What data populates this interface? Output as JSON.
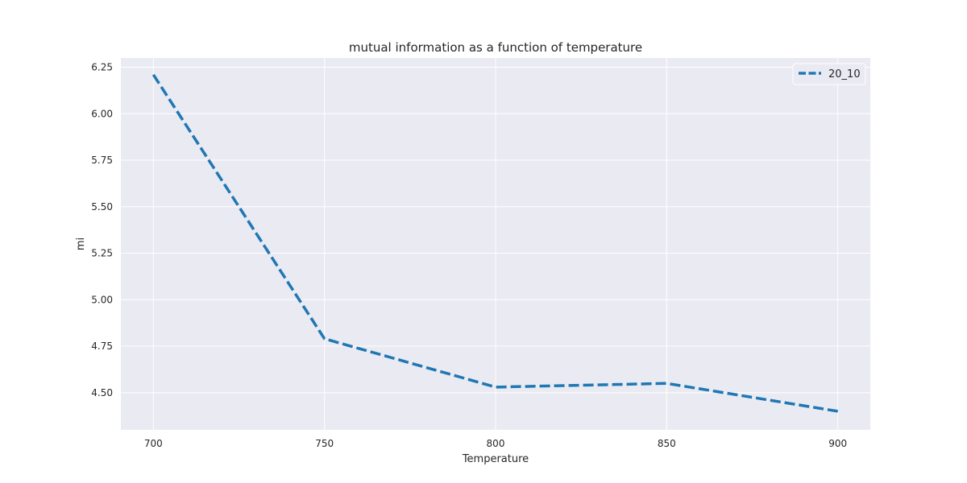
{
  "chart_data": {
    "type": "line",
    "title": "mutual information as a function of temperature",
    "xlabel": "Temperature",
    "ylabel": "mi",
    "x": [
      700,
      750,
      800,
      850,
      900
    ],
    "series": [
      {
        "name": "20_10",
        "values": [
          6.21,
          4.79,
          4.53,
          4.55,
          4.4
        ],
        "color": "#1f77b4",
        "style": "dashed"
      }
    ],
    "xticks": [
      700,
      750,
      800,
      850,
      900
    ],
    "yticks": [
      4.5,
      4.75,
      5.0,
      5.25,
      5.5,
      5.75,
      6.0,
      6.25
    ],
    "ytick_labels": [
      "4.50",
      "4.75",
      "5.00",
      "5.25",
      "5.50",
      "5.75",
      "6.00",
      "6.25"
    ],
    "xlim": [
      690.5,
      909.5
    ],
    "ylim": [
      4.3,
      6.3
    ],
    "grid": true,
    "legend_position": "top-right",
    "background": "#eaeaf2",
    "grid_color": "#ffffff"
  }
}
